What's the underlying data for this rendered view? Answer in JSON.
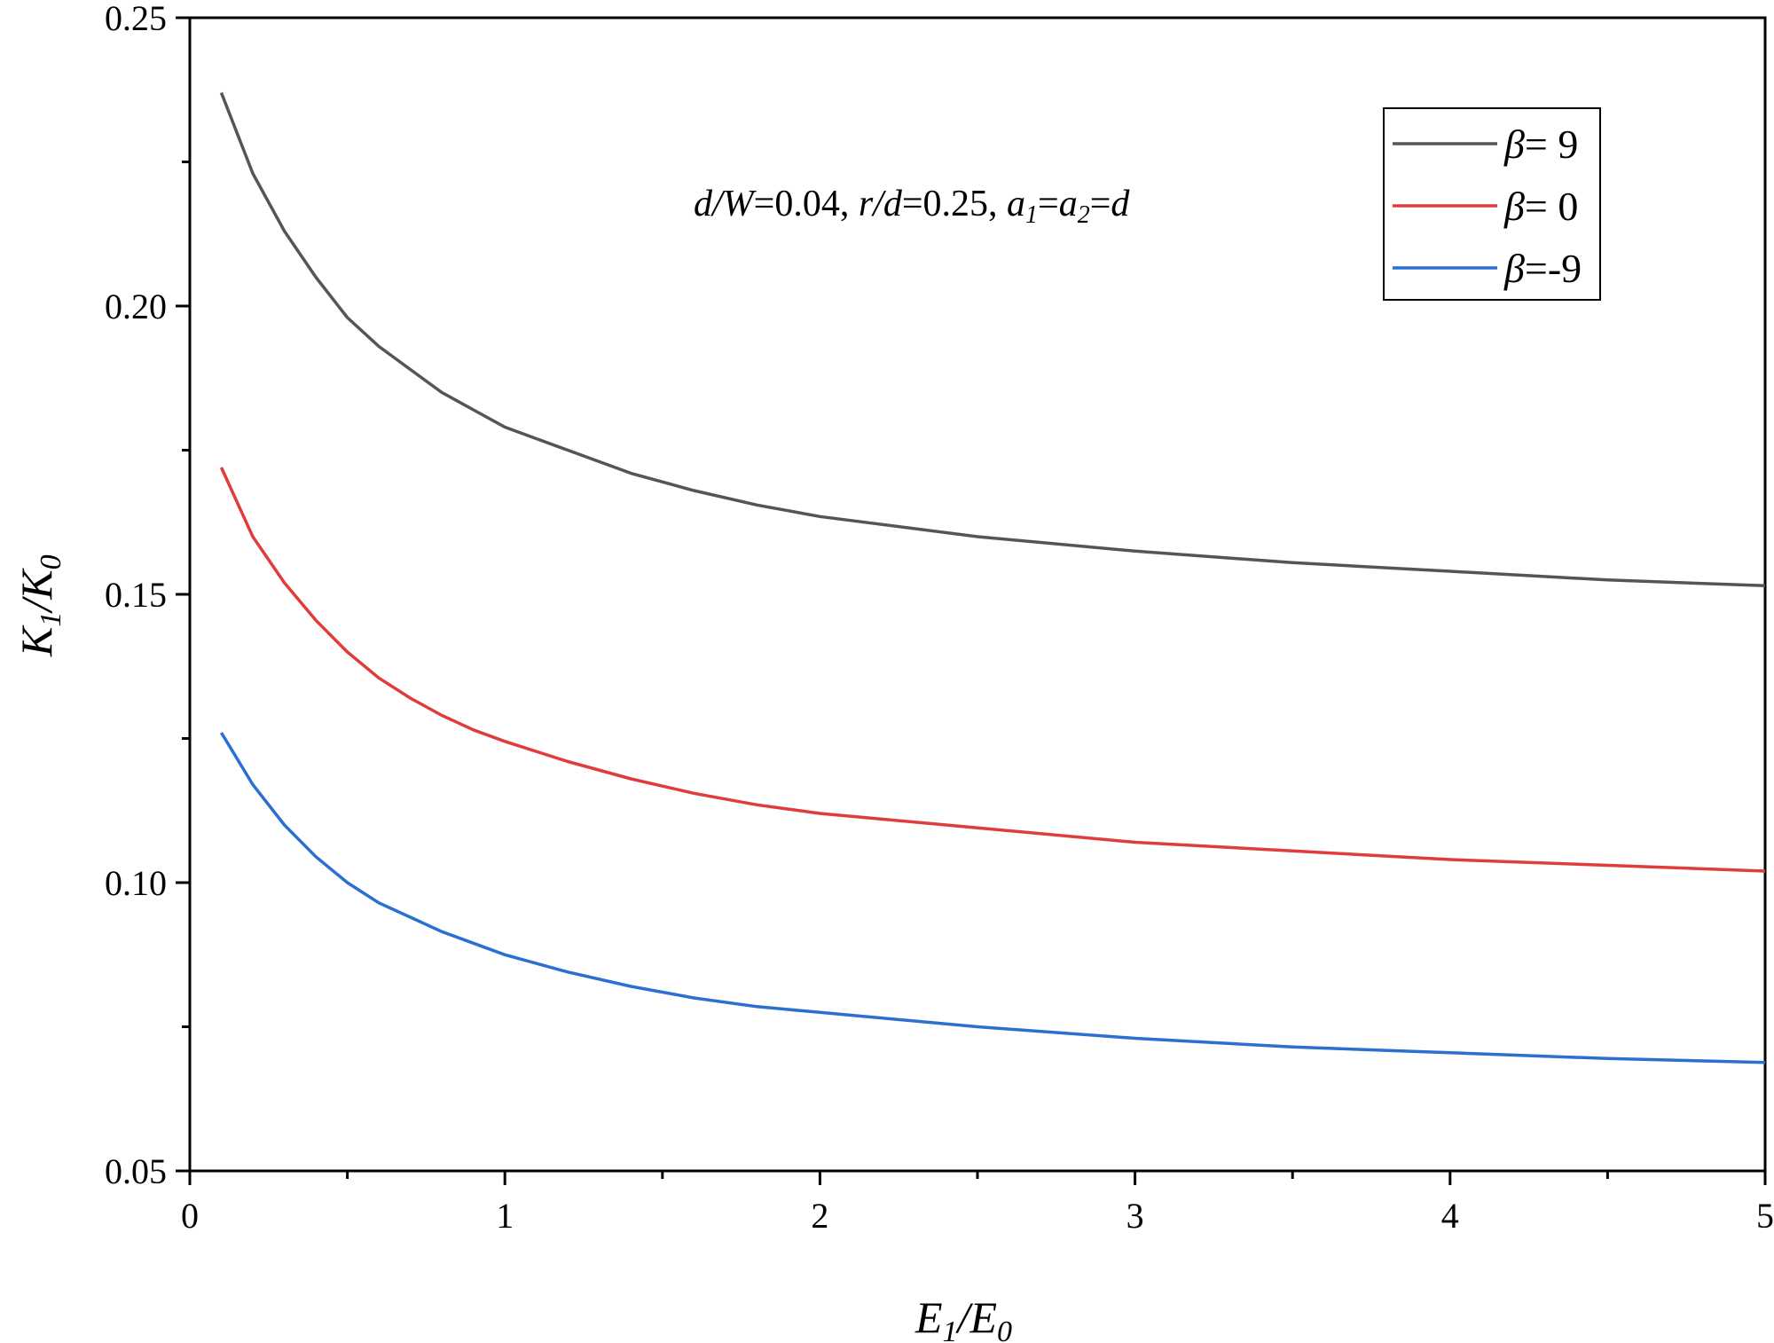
{
  "chart_data": {
    "type": "line",
    "xlabel": {
      "base": "E",
      "sub": "1",
      "sep": "/",
      "base2": "E",
      "sub2": "0"
    },
    "ylabel": {
      "base": "K",
      "sub": "1",
      "sep": "/",
      "base2": "K",
      "sub2": "0"
    },
    "xlim": [
      0,
      5
    ],
    "ylim": [
      0.05,
      0.25
    ],
    "x_ticks": [
      "0",
      "1",
      "2",
      "3",
      "4",
      "5"
    ],
    "y_ticks": [
      "0.05",
      "0.10",
      "0.15",
      "0.20",
      "0.25"
    ],
    "annotation": {
      "p1": "d/W",
      "p2": "=0.04, ",
      "p3": "r/d",
      "p4": "=0.25, ",
      "p5": "a",
      "p6": "1",
      "p7": "=",
      "p8": "a",
      "p9": "2",
      "p10": "=",
      "p11": "d"
    },
    "legend_position": "top-right",
    "grid": false,
    "x": [
      0.1,
      0.2,
      0.3,
      0.4,
      0.5,
      0.6,
      0.7,
      0.8,
      0.9,
      1.0,
      1.2,
      1.4,
      1.6,
      1.8,
      2.0,
      2.5,
      3.0,
      3.5,
      4.0,
      4.5,
      5.0
    ],
    "series": [
      {
        "name": "β= 9",
        "symbol": "β",
        "label": "= 9",
        "color": "#555555",
        "values": [
          0.237,
          0.223,
          0.213,
          0.205,
          0.198,
          0.193,
          0.189,
          0.185,
          0.182,
          0.179,
          0.175,
          0.171,
          0.168,
          0.1655,
          0.1635,
          0.16,
          0.1575,
          0.1555,
          0.154,
          0.1525,
          0.1515
        ]
      },
      {
        "name": "β= 0",
        "symbol": "β",
        "label": "= 0",
        "color": "#e03c3c",
        "values": [
          0.172,
          0.16,
          0.152,
          0.1455,
          0.14,
          0.1355,
          0.132,
          0.129,
          0.1265,
          0.1245,
          0.121,
          0.118,
          0.1155,
          0.1135,
          0.112,
          0.1095,
          0.107,
          0.1055,
          0.104,
          0.103,
          0.102
        ]
      },
      {
        "name": "β=-9",
        "symbol": "β",
        "label": "=-9",
        "color": "#2a6fd1",
        "values": [
          0.126,
          0.117,
          0.11,
          0.1045,
          0.1,
          0.0965,
          0.094,
          0.0915,
          0.0895,
          0.0875,
          0.0845,
          0.082,
          0.08,
          0.0785,
          0.0775,
          0.075,
          0.073,
          0.0715,
          0.0705,
          0.0695,
          0.0688
        ]
      }
    ]
  }
}
